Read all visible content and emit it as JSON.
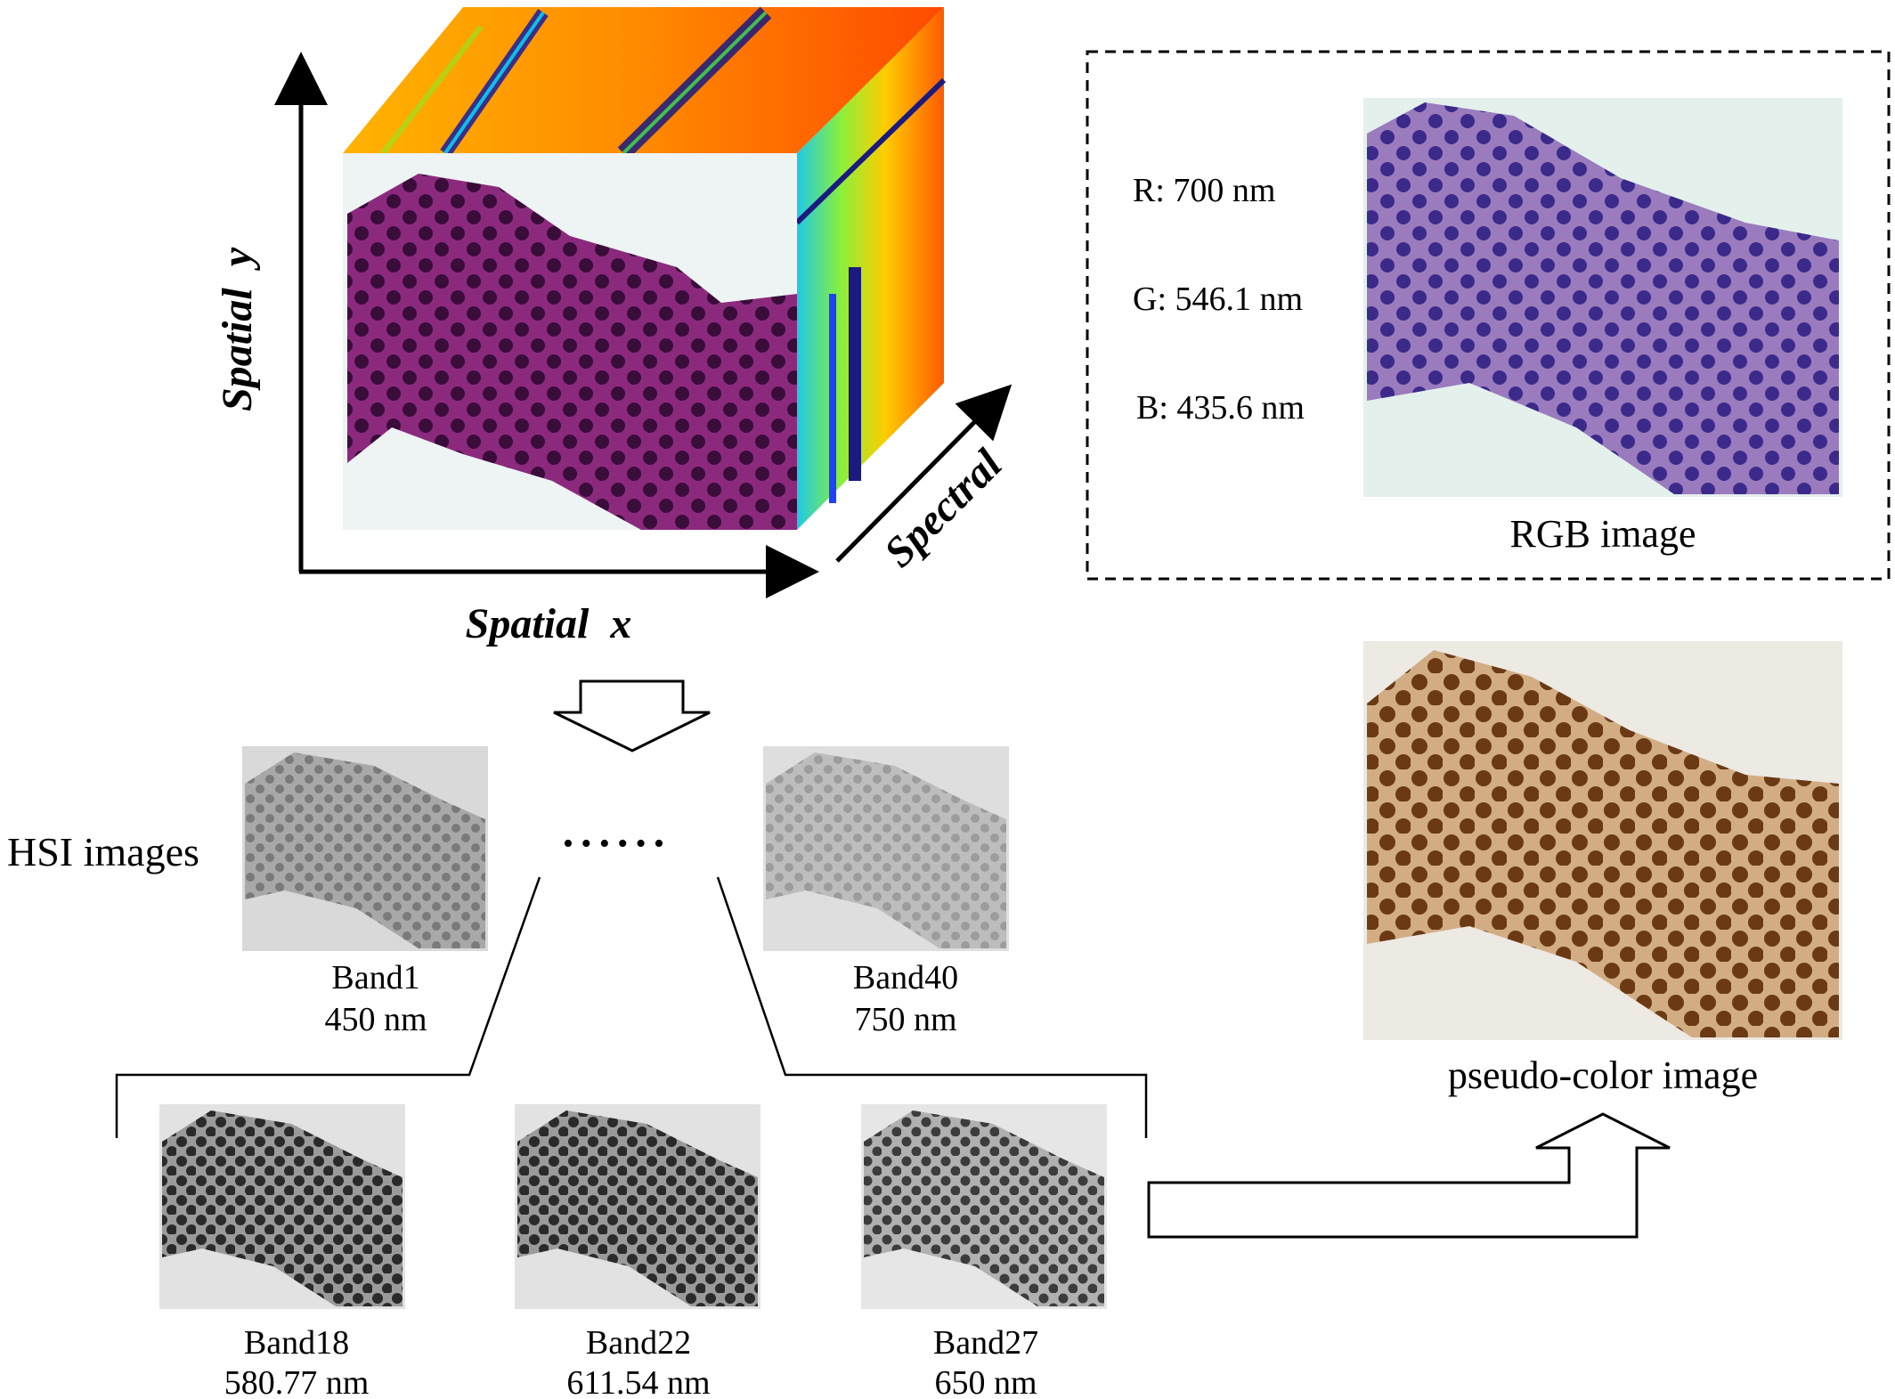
{
  "cube": {
    "axis_y": "Spatial  y",
    "axis_x": "Spatial  x",
    "axis_spectral": "Spectral"
  },
  "rgb_panel": {
    "channels": [
      "R: 700 nm",
      "G: 546.1 nm",
      "B: 435.6 nm"
    ],
    "caption": "RGB image"
  },
  "pseudo": {
    "caption": "pseudo-color image"
  },
  "hsi": {
    "label": "HSI images",
    "ellipsis": "• • • • • •",
    "top_bands": [
      {
        "name": "Band1",
        "wavelength": "450 nm"
      },
      {
        "name": "Band40",
        "wavelength": "750 nm"
      }
    ],
    "selected_bands": [
      {
        "name": "Band18",
        "wavelength": "580.77 nm"
      },
      {
        "name": "Band22",
        "wavelength": "611.54 nm"
      },
      {
        "name": "Band27",
        "wavelength": "650 nm"
      }
    ]
  },
  "colors": {
    "cube_front": "#7a1f6e",
    "rgb_tissue": "#8f6bb0",
    "rgb_nucleus": "#3b2a8a",
    "pseudo_tissue": "#c9a27a",
    "pseudo_nucleus": "#6b3a14",
    "gray_band": "#9a9a9a"
  }
}
